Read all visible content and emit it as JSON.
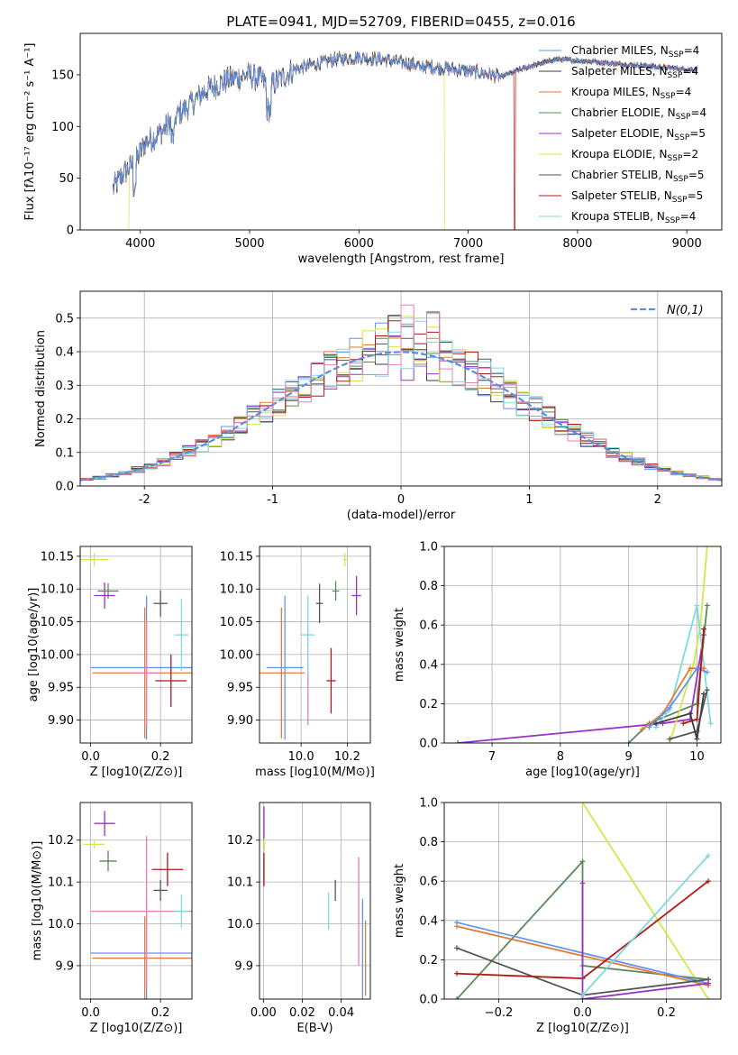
{
  "colors": {
    "chabrier_miles": "#6495ed",
    "salpeter_miles": "#3d3d3d",
    "kroupa_miles": "#e07b39",
    "chabrier_elodie": "#5a8a5a",
    "salpeter_elodie": "#9b30c8",
    "kroupa_elodie": "#d4e64a",
    "chabrier_stelib": "#555555",
    "salpeter_stelib": "#b01818",
    "kroupa_stelib": "#7fd9e0",
    "pink": "#e87fb3",
    "gaussian": "#5b8fdb"
  },
  "chart_data": [
    {
      "id": "spectrum",
      "type": "line",
      "title": "PLATE=0941, MJD=52709, FIBERID=0455, z=0.016",
      "xlabel": "wavelength [Angstrom, rest frame]",
      "ylabel": "Flux [fλ10⁻¹⁷ erg cm⁻² s⁻¹ A⁻¹]",
      "xlim": [
        3450,
        9320
      ],
      "ylim": [
        0,
        190
      ],
      "xticks": [
        4000,
        5000,
        6000,
        7000,
        8000,
        9000
      ],
      "yticks": [
        0,
        50,
        100,
        150
      ],
      "legend_placement": "upper right",
      "continuum": [
        [
          3750,
          40
        ],
        [
          3850,
          55
        ],
        [
          3950,
          65
        ],
        [
          4050,
          85
        ],
        [
          4200,
          95
        ],
        [
          4300,
          108
        ],
        [
          4450,
          120
        ],
        [
          4600,
          135
        ],
        [
          4800,
          145
        ],
        [
          5000,
          150
        ],
        [
          5200,
          140
        ],
        [
          5400,
          155
        ],
        [
          5600,
          160
        ],
        [
          5800,
          165
        ],
        [
          6000,
          167
        ],
        [
          6200,
          165
        ],
        [
          6500,
          160
        ],
        [
          6700,
          157
        ],
        [
          6900,
          155
        ],
        [
          7100,
          152
        ],
        [
          7300,
          148
        ],
        [
          7500,
          156
        ],
        [
          7800,
          165
        ],
        [
          8100,
          163
        ],
        [
          8400,
          160
        ],
        [
          8700,
          158
        ],
        [
          9000,
          155
        ],
        [
          9100,
          155
        ]
      ],
      "series": [
        {
          "name": "Chabrier MILES, N_SSP=4",
          "color_key": "chabrier_miles"
        },
        {
          "name": "Salpeter MILES, N_SSP=4",
          "color_key": "salpeter_miles"
        },
        {
          "name": "Kroupa MILES, N_SSP=4",
          "color_key": "kroupa_miles"
        },
        {
          "name": "Chabrier ELODIE, N_SSP=4",
          "color_key": "chabrier_elodie"
        },
        {
          "name": "Salpeter ELODIE, N_SSP=5",
          "color_key": "salpeter_elodie"
        },
        {
          "name": "Kroupa ELODIE, N_SSP=2",
          "color_key": "kroupa_elodie"
        },
        {
          "name": "Chabrier STELIB, N_SSP=5",
          "color_key": "chabrier_stelib"
        },
        {
          "name": "Salpeter STELIB, N_SSP=5",
          "color_key": "salpeter_stelib"
        },
        {
          "name": "Kroupa STELIB, N_SSP=4",
          "color_key": "kroupa_stelib"
        }
      ]
    },
    {
      "id": "residuals",
      "type": "area",
      "xlabel": "(data-model)/error",
      "ylabel": "Normed distribution",
      "xlim": [
        -2.5,
        2.5
      ],
      "ylim": [
        0,
        0.58
      ],
      "xticks": [
        -2,
        -1,
        0,
        1,
        2
      ],
      "yticks": [
        0.0,
        0.1,
        0.2,
        0.3,
        0.4,
        0.5
      ],
      "grid": true,
      "legend": "N(0,1)",
      "legend_placement": "upper right"
    },
    {
      "id": "age_vs_Z",
      "type": "scatter",
      "xlabel": "Z [log10(Z/Z⊙)]",
      "ylabel": "age  [log10(age/yr)]",
      "xlim": [
        -0.03,
        0.29
      ],
      "ylim": [
        9.865,
        10.165
      ],
      "xticks": [
        0.0,
        0.2
      ],
      "xticklabels": [
        "0.0",
        "0.2"
      ],
      "yticks": [
        9.9,
        9.95,
        10.0,
        10.05,
        10.1,
        10.15
      ],
      "yticklabels": [
        "9.90",
        "9.95",
        "10.00",
        "10.05",
        "10.10",
        "10.15"
      ],
      "points": [
        {
          "color_key": "chabrier_miles",
          "x": 0.16,
          "y": 9.98,
          "xerr": 0.16,
          "yerr": 0.11
        },
        {
          "color_key": "kroupa_miles",
          "x": 0.155,
          "y": 9.972,
          "xerr": 0.15,
          "yerr": 0.1
        },
        {
          "color_key": "pink",
          "x": 0.16,
          "y": 9.972,
          "xerr": 0.04,
          "yerr": 0.08
        },
        {
          "color_key": "kroupa_elodie",
          "x": 0.01,
          "y": 10.145,
          "xerr": 0.04,
          "yerr": 0.01
        },
        {
          "color_key": "salpeter_elodie",
          "x": 0.04,
          "y": 10.09,
          "xerr": 0.03,
          "yerr": 0.02
        },
        {
          "color_key": "chabrier_elodie",
          "x": 0.05,
          "y": 10.097,
          "xerr": 0.03,
          "yerr": 0.012
        },
        {
          "color_key": "chabrier_stelib",
          "x": 0.2,
          "y": 10.078,
          "xerr": 0.02,
          "yerr": 0.02
        },
        {
          "color_key": "kroupa_stelib",
          "x": 0.26,
          "y": 10.03,
          "xerr": 0.02,
          "yerr": 0.055
        },
        {
          "color_key": "salpeter_stelib",
          "x": 0.23,
          "y": 9.96,
          "xerr": 0.045,
          "yerr": 0.04
        }
      ]
    },
    {
      "id": "age_vs_mass",
      "type": "scatter",
      "xlabel": "mass [log10(M/M⊙)]",
      "xlim": [
        9.82,
        10.3
      ],
      "ylim": [
        9.865,
        10.165
      ],
      "xticks": [
        10.0,
        10.2
      ],
      "xticklabels": [
        "10.0",
        "10.2"
      ],
      "yticks": [
        9.9,
        9.95,
        10.0,
        10.05,
        10.1,
        10.15
      ],
      "yticklabels": [
        "9.90",
        "9.95",
        "10.00",
        "10.05",
        "10.10",
        "10.15"
      ],
      "points": [
        {
          "color_key": "chabrier_miles",
          "x": 9.93,
          "y": 9.98,
          "xerr": 0.0,
          "yerr": 0.11
        },
        {
          "color_key": "kroupa_miles",
          "x": 9.915,
          "y": 9.972,
          "xerr": 0.0,
          "yerr": 0.1
        },
        {
          "color_key": "chabrier_miles",
          "x": 9.93,
          "y": 9.98,
          "xerr": 0.08,
          "yerr": 0.0
        },
        {
          "color_key": "kroupa_miles",
          "x": 9.915,
          "y": 9.972,
          "xerr": 0.1,
          "yerr": 0.0
        },
        {
          "color_key": "pink",
          "x": 10.03,
          "y": 9.972,
          "xerr": 0.0,
          "yerr": 0.08
        },
        {
          "color_key": "kroupa_elodie",
          "x": 10.19,
          "y": 10.145,
          "xerr": 0.01,
          "yerr": 0.01
        },
        {
          "color_key": "salpeter_elodie",
          "x": 10.24,
          "y": 10.09,
          "xerr": 0.02,
          "yerr": 0.03
        },
        {
          "color_key": "chabrier_elodie",
          "x": 10.15,
          "y": 10.097,
          "xerr": 0.015,
          "yerr": 0.015
        },
        {
          "color_key": "chabrier_stelib",
          "x": 10.08,
          "y": 10.078,
          "xerr": 0.015,
          "yerr": 0.03
        },
        {
          "color_key": "kroupa_stelib",
          "x": 10.03,
          "y": 10.03,
          "xerr": 0.03,
          "yerr": 0.06
        },
        {
          "color_key": "salpeter_stelib",
          "x": 10.13,
          "y": 9.96,
          "xerr": 0.02,
          "yerr": 0.05
        }
      ]
    },
    {
      "id": "massweight_vs_age",
      "type": "line",
      "xlabel": "age  [log10(age/yr)]",
      "ylabel": "mass weight",
      "xlim": [
        6.3,
        10.35
      ],
      "ylim": [
        0,
        1
      ],
      "xticks": [
        7,
        8,
        9,
        10
      ],
      "yticks": [
        0.0,
        0.2,
        0.4,
        0.6,
        0.8,
        1.0
      ],
      "grid": true,
      "series": [
        {
          "color_key": "salpeter_elodie",
          "points": [
            [
              6.5,
              0.0
            ],
            [
              9.5,
              0.1
            ],
            [
              9.9,
              0.12
            ],
            [
              10.1,
              0.55
            ]
          ]
        },
        {
          "color_key": "chabrier_elodie",
          "points": [
            [
              9.0,
              0.0
            ],
            [
              9.3,
              0.1
            ],
            [
              10.0,
              0.2
            ],
            [
              10.15,
              0.7
            ]
          ]
        },
        {
          "color_key": "kroupa_elodie",
          "points": [
            [
              9.6,
              0.0
            ],
            [
              9.95,
              0.4
            ],
            [
              10.05,
              0.6
            ],
            [
              10.15,
              1.0
            ]
          ]
        },
        {
          "color_key": "kroupa_stelib",
          "points": [
            [
              9.4,
              0.08
            ],
            [
              9.6,
              0.17
            ],
            [
              10.0,
              0.7
            ],
            [
              10.2,
              0.1
            ]
          ]
        },
        {
          "color_key": "kroupa_miles",
          "points": [
            [
              9.2,
              0.07
            ],
            [
              9.5,
              0.15
            ],
            [
              9.9,
              0.38
            ],
            [
              10.1,
              0.38
            ]
          ]
        },
        {
          "color_key": "chabrier_miles",
          "points": [
            [
              9.3,
              0.08
            ],
            [
              9.6,
              0.18
            ],
            [
              10.0,
              0.38
            ],
            [
              10.15,
              0.36
            ]
          ]
        },
        {
          "color_key": "chabrier_stelib",
          "points": [
            [
              9.6,
              0.02
            ],
            [
              10.0,
              0.06
            ],
            [
              10.15,
              0.27
            ]
          ]
        },
        {
          "color_key": "salpeter_stelib",
          "points": [
            [
              9.8,
              0.1
            ],
            [
              10.0,
              0.12
            ],
            [
              10.1,
              0.58
            ]
          ]
        },
        {
          "color_key": "salpeter_miles",
          "points": [
            [
              9.4,
              0.1
            ],
            [
              9.9,
              0.15
            ],
            [
              10.0,
              0.02
            ],
            [
              10.1,
              0.25
            ]
          ]
        }
      ]
    },
    {
      "id": "mass_vs_Z",
      "type": "scatter",
      "xlabel": "Z [log10(Z/Z⊙)]",
      "ylabel": "mass [log10(M/M⊙)]",
      "xlim": [
        -0.03,
        0.29
      ],
      "ylim": [
        9.82,
        10.29
      ],
      "xticks": [
        0.0,
        0.2
      ],
      "xticklabels": [
        "0.0",
        "0.2"
      ],
      "yticks": [
        9.9,
        10.0,
        10.1,
        10.2
      ],
      "yticklabels": [
        "9.9",
        "10.0",
        "10.1",
        "10.2"
      ],
      "points": [
        {
          "color_key": "chabrier_miles",
          "x": 0.16,
          "y": 9.93,
          "xerr": 0.16,
          "yerr": 0.13
        },
        {
          "color_key": "kroupa_miles",
          "x": 0.155,
          "y": 9.918,
          "xerr": 0.15,
          "yerr": 0.1
        },
        {
          "color_key": "pink",
          "x": 0.16,
          "y": 10.03,
          "xerr": 0.16,
          "yerr": 0.18
        },
        {
          "color_key": "kroupa_elodie",
          "x": 0.01,
          "y": 10.19,
          "xerr": 0.03,
          "yerr": 0.01
        },
        {
          "color_key": "salpeter_elodie",
          "x": 0.04,
          "y": 10.24,
          "xerr": 0.03,
          "yerr": 0.03
        },
        {
          "color_key": "chabrier_elodie",
          "x": 0.05,
          "y": 10.15,
          "xerr": 0.025,
          "yerr": 0.025
        },
        {
          "color_key": "chabrier_stelib",
          "x": 0.2,
          "y": 10.08,
          "xerr": 0.02,
          "yerr": 0.025
        },
        {
          "color_key": "kroupa_stelib",
          "x": 0.26,
          "y": 10.03,
          "xerr": 0.02,
          "yerr": 0.04
        },
        {
          "color_key": "salpeter_stelib",
          "x": 0.22,
          "y": 10.13,
          "xerr": 0.045,
          "yerr": 0.04
        }
      ]
    },
    {
      "id": "mass_vs_ebv",
      "type": "scatter",
      "xlabel": "E(B-V)",
      "xlim": [
        -0.002,
        0.055
      ],
      "ylim": [
        9.82,
        10.29
      ],
      "xticks": [
        0.0,
        0.02,
        0.04
      ],
      "xticklabels": [
        "0.00",
        "0.02",
        "0.04"
      ],
      "yticks": [
        9.9,
        10.0,
        10.1,
        10.2
      ],
      "yticklabels": [
        "9.9",
        "10.0",
        "10.1",
        "10.2"
      ],
      "points": [
        {
          "color_key": "salpeter_elodie",
          "x": 0.0003,
          "y": 10.24,
          "xerr": 0.0,
          "yerr": 0.04
        },
        {
          "color_key": "kroupa_elodie",
          "x": 0.0005,
          "y": 10.19,
          "xerr": 0.0,
          "yerr": 0.015
        },
        {
          "color_key": "salpeter_stelib",
          "x": 0.0003,
          "y": 10.13,
          "xerr": 0.0,
          "yerr": 0.04
        },
        {
          "color_key": "kroupa_stelib",
          "x": 0.0335,
          "y": 10.03,
          "xerr": 0.0,
          "yerr": 0.045
        },
        {
          "color_key": "chabrier_stelib",
          "x": 0.037,
          "y": 10.08,
          "xerr": 0.0,
          "yerr": 0.025
        },
        {
          "color_key": "pink",
          "x": 0.049,
          "y": 10.03,
          "xerr": 0.0,
          "yerr": 0.13
        },
        {
          "color_key": "chabrier_miles",
          "x": 0.051,
          "y": 9.93,
          "xerr": 0.0,
          "yerr": 0.13
        },
        {
          "color_key": "kroupa_miles",
          "x": 0.0525,
          "y": 9.918,
          "xerr": 0.0,
          "yerr": 0.09
        }
      ]
    },
    {
      "id": "massweight_vs_Z",
      "type": "line",
      "xlabel": "Z [log10(Z/Z⊙)]",
      "ylabel": "mass weight",
      "xlim": [
        -0.33,
        0.33
      ],
      "ylim": [
        0,
        1
      ],
      "xticks": [
        -0.2,
        0.0,
        0.2
      ],
      "xticklabels": [
        "−0.2",
        "0.0",
        "0.2"
      ],
      "yticks": [
        0.0,
        0.2,
        0.4,
        0.6,
        0.8,
        1.0
      ],
      "grid": true,
      "series": [
        {
          "color_key": "kroupa_elodie",
          "points": [
            [
              0.0,
              1.0
            ],
            [
              0.3,
              0.0
            ]
          ]
        },
        {
          "color_key": "chabrier_elodie",
          "points": [
            [
              -0.3,
              0.0
            ],
            [
              0.0,
              0.7
            ],
            [
              0.0,
              0.17
            ],
            [
              0.3,
              0.1
            ]
          ]
        },
        {
          "color_key": "chabrier_miles",
          "points": [
            [
              -0.3,
              0.39
            ],
            [
              0.3,
              0.08
            ]
          ]
        },
        {
          "color_key": "kroupa_miles",
          "points": [
            [
              -0.3,
              0.37
            ],
            [
              0.3,
              0.07
            ]
          ]
        },
        {
          "color_key": "chabrier_stelib",
          "points": [
            [
              -0.3,
              0.26
            ],
            [
              0.0,
              0.02
            ],
            [
              0.3,
              0.1
            ]
          ]
        },
        {
          "color_key": "salpeter_stelib",
          "points": [
            [
              -0.3,
              0.13
            ],
            [
              0.0,
              0.105
            ],
            [
              0.3,
              0.6
            ]
          ]
        },
        {
          "color_key": "salpeter_elodie",
          "points": [
            [
              0.0,
              0.59
            ],
            [
              0.0,
              0.0
            ],
            [
              0.3,
              0.08
            ]
          ]
        },
        {
          "color_key": "kroupa_stelib",
          "points": [
            [
              0.0,
              0.02
            ],
            [
              0.3,
              0.73
            ]
          ]
        }
      ]
    }
  ]
}
